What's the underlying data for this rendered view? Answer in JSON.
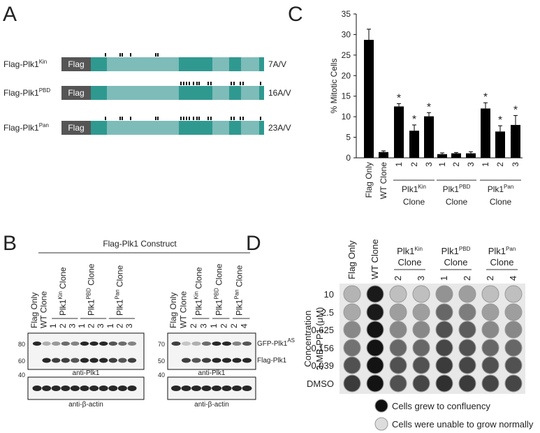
{
  "panel_a": {
    "label": "A",
    "tag": "Flag",
    "constructs": [
      {
        "name": "Flag-Plk1",
        "sup": "Kin",
        "mutations": "7A/V"
      },
      {
        "name": "Flag-Plk1",
        "sup": "PBD",
        "mutations": "16A/V"
      },
      {
        "name": "Flag-Plk1",
        "sup": "Pan",
        "mutations": "23A/V"
      }
    ]
  },
  "panel_b": {
    "label": "B",
    "title": "Flag-Plk1 Construct",
    "left": {
      "controls": [
        "Flag Only",
        "WT Clone"
      ],
      "groups": [
        {
          "name": "Plk1",
          "sup": "Kin",
          "suffix": "Clone",
          "lanes": [
            "1",
            "2",
            "3"
          ]
        },
        {
          "name": "Plk1",
          "sup": "PBD",
          "suffix": "Clone",
          "lanes": [
            "1",
            "2",
            "3"
          ]
        },
        {
          "name": "Plk1",
          "sup": "Pan",
          "suffix": "Clone",
          "lanes": [
            "1",
            "2",
            "3"
          ]
        }
      ],
      "markers": [
        80,
        60,
        40
      ],
      "antibodies": [
        "anti-Plk1",
        "anti-β-actin"
      ]
    },
    "right": {
      "controls": [
        "Flag Only",
        "WT Clone"
      ],
      "groups": [
        {
          "name": "Plk1",
          "sup": "Kin",
          "suffix": "Clone",
          "lanes": [
            "2",
            "3"
          ]
        },
        {
          "name": "Plk1",
          "sup": "PBD",
          "suffix": "Clone",
          "lanes": [
            "1",
            "2"
          ]
        },
        {
          "name": "Plk1",
          "sup": "Pan",
          "suffix": "Clone",
          "lanes": [
            "2",
            "4"
          ]
        }
      ],
      "markers": [
        70,
        50,
        40
      ],
      "antibodies": [
        "anti-Plk1",
        "anti-β-actin"
      ],
      "bands": [
        {
          "name": "GFP-Plk1",
          "sup": "AS"
        },
        {
          "name": "Flag-Plk1"
        }
      ]
    }
  },
  "chart_data": {
    "type": "bar",
    "panel_label": "C",
    "ylabel": "% Mitotic Cells",
    "categories": [
      "Flag Only",
      "WT Clone",
      "1",
      "2",
      "3",
      "1",
      "2",
      "3",
      "1",
      "2",
      "3"
    ],
    "groups": [
      {
        "name": "Plk1",
        "sup": "Kin",
        "suffix": "Clone"
      },
      {
        "name": "Plk1",
        "sup": "PBD",
        "suffix": "Clone"
      },
      {
        "name": "Plk1",
        "sup": "Pan",
        "suffix": "Clone"
      }
    ],
    "values": [
      28.7,
      1.4,
      12.5,
      6.6,
      10.1,
      0.9,
      1.1,
      1.1,
      12.0,
      6.4,
      8.0
    ],
    "errors": [
      2.6,
      0.3,
      0.7,
      1.4,
      0.9,
      0.3,
      0.2,
      0.4,
      1.4,
      1.4,
      2.3
    ],
    "significant": [
      false,
      false,
      true,
      true,
      true,
      false,
      false,
      false,
      true,
      true,
      true
    ],
    "significance_label": "*",
    "color": "#000000",
    "ylim": [
      0,
      35
    ],
    "yticks": [
      0,
      5,
      10,
      15,
      20,
      25,
      30,
      35
    ]
  },
  "panel_d": {
    "label": "D",
    "controls": [
      "Flag Only",
      "WT Clone"
    ],
    "groups": [
      {
        "name": "Plk1",
        "sup": "Kin",
        "suffix": "Clone",
        "lanes": [
          "2",
          "3"
        ]
      },
      {
        "name": "Plk1",
        "sup": "PBD",
        "suffix": "Clone",
        "lanes": [
          "1",
          "2"
        ]
      },
      {
        "name": "Plk1",
        "sup": "Pan",
        "suffix": "Clone",
        "lanes": [
          "2",
          "4"
        ]
      }
    ],
    "rows": [
      "10",
      "2.5",
      "0.625",
      "0.156",
      "0.039",
      "DMSO"
    ],
    "axis_label": [
      "Concentration",
      "3-MB-PP1 (μM)"
    ],
    "legend": [
      "Cells grew to confluency",
      "Cells were unable to grow normally"
    ]
  }
}
